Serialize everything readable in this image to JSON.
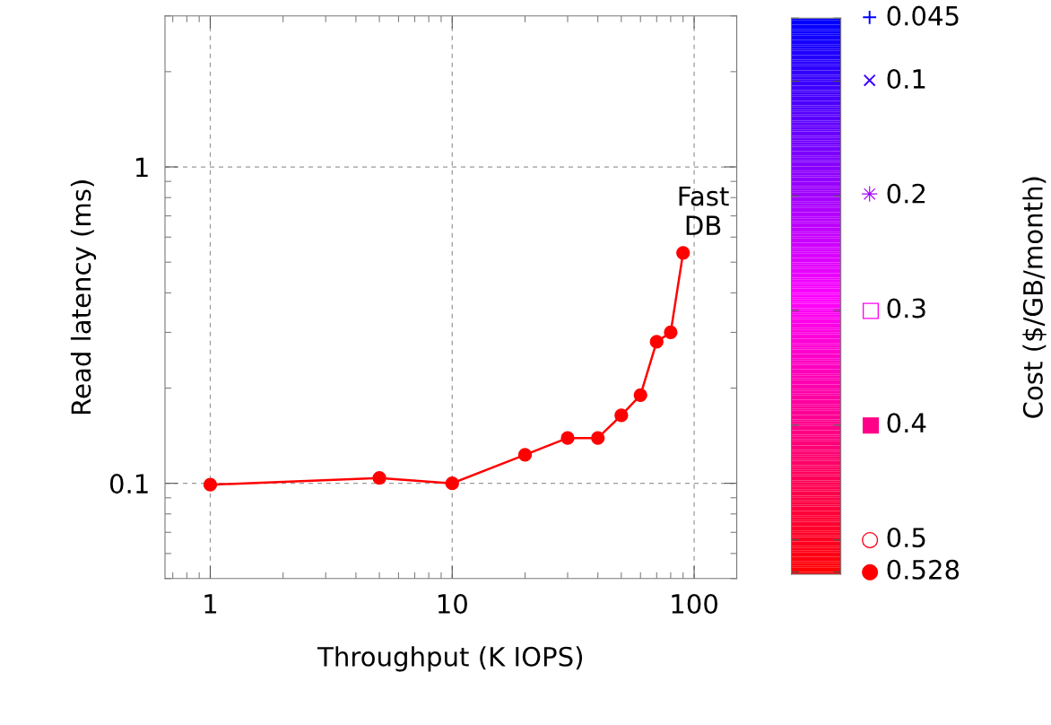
{
  "chart_data": {
    "type": "line",
    "xlabel": "Throughput (K IOPS)",
    "ylabel": "Read latency (ms)",
    "clabel": "Cost ($/GB/month)",
    "x": [
      1,
      5,
      10,
      20,
      30,
      40,
      50,
      60,
      70,
      80,
      90
    ],
    "series": [
      {
        "color": "#ff0000",
        "values": [
          0.099,
          0.104,
          0.1,
          0.123,
          0.139,
          0.139,
          0.164,
          0.19,
          0.28,
          0.3,
          0.535
        ]
      }
    ],
    "log": "xy",
    "xlim": [
      0.65,
      150
    ],
    "ylim": [
      0.05,
      3
    ],
    "xticks": [
      1,
      10,
      100
    ],
    "yticks": [
      0.1,
      1
    ],
    "grid": true,
    "marker": "circle",
    "line_style": "solid",
    "legend": false,
    "annotations": [
      {
        "text": "Fast\nDB",
        "x": 90,
        "y": 0.535
      }
    ],
    "clim": [
      0.53,
      0.045
    ],
    "cticks": [
      {
        "value": 0.045,
        "label": "+ 0.045"
      },
      {
        "value": 0.1,
        "label": "× 0.1"
      },
      {
        "value": 0.2,
        "label": "✳ 0.2"
      },
      {
        "value": 0.3,
        "label": "□ 0.3"
      },
      {
        "value": 0.4,
        "label": "■ 0.4"
      },
      {
        "value": 0.5,
        "label": "○ 0.5"
      },
      {
        "value": 0.528,
        "label": "● 0.528"
      }
    ]
  }
}
